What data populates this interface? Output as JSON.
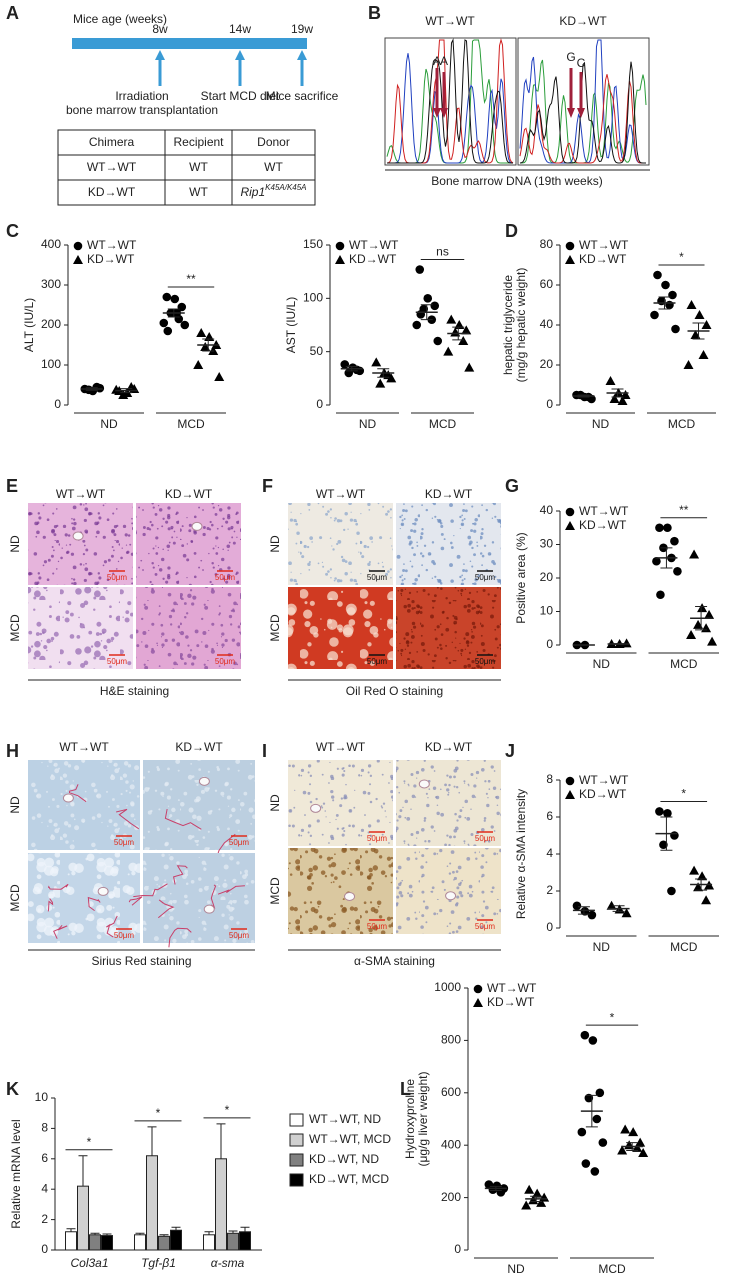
{
  "panel_labels": [
    "A",
    "B",
    "C",
    "D",
    "E",
    "F",
    "G",
    "H",
    "I",
    "J",
    "K",
    "L"
  ],
  "timeline": {
    "title": "Mice age (weeks)",
    "ticks": [
      "8w",
      "14w",
      "19w"
    ],
    "events": [
      [
        "Irradiation",
        "bone marrow transplantation"
      ],
      [
        "Start MCD diet"
      ],
      [
        "Mice sacrifice"
      ]
    ]
  },
  "table": {
    "header": [
      "Chimera",
      "Recipient",
      "Donor"
    ],
    "rows": [
      [
        "WT→WT",
        "WT",
        "WT"
      ],
      [
        "KD→WT",
        "WT",
        {
          "base": "Rip1",
          "sup": "K45A/K45A"
        }
      ]
    ]
  },
  "sequencing": {
    "columns": [
      "WT→WT",
      "KD→WT"
    ],
    "bases": [
      [
        "A",
        "A"
      ],
      [
        "G",
        "C"
      ]
    ],
    "caption": "Bone marrow DNA (19th weeks)"
  },
  "micrographs": [
    {
      "columns": [
        "WT→WT",
        "KD→WT"
      ],
      "rows": [
        "ND",
        "MCD"
      ],
      "scale_bar": "50μm",
      "caption": "H&E staining"
    },
    {
      "columns": [
        "WT→WT",
        "KD→WT"
      ],
      "rows": [
        "ND",
        "MCD"
      ],
      "scale_bar": "50μm",
      "caption": "Oil Red O staining"
    },
    {
      "columns": [
        "WT→WT",
        "KD→WT"
      ],
      "rows": [
        "ND",
        "MCD"
      ],
      "scale_bar": "50μm",
      "caption": "Sirius Red staining"
    },
    {
      "columns": [
        "WT→WT",
        "KD→WT"
      ],
      "rows": [
        "ND",
        "MCD"
      ],
      "scale_bar": "50μm",
      "caption": "α-SMA staining"
    }
  ],
  "chart_data": [
    {
      "type": "dotplot",
      "ylabel": [
        "ALT (IU/L)"
      ],
      "categories": [
        "ND",
        "MCD"
      ],
      "ylim": [
        0,
        400
      ],
      "yticks": [
        0,
        100,
        200,
        300,
        400
      ],
      "legend": "top-left",
      "series": [
        {
          "name": "WT→WT",
          "marker": "circle",
          "color": "#000000",
          "values": [
            [
              40,
              35,
              42,
              38,
              45
            ],
            [
              270,
              265,
              245,
              230,
              215,
              205,
              200,
              185,
              230
            ]
          ],
          "means": [
            40,
            230
          ],
          "errors": [
            3,
            10
          ]
        },
        {
          "name": "KD→WT",
          "marker": "triangle",
          "color": "#000000",
          "values": [
            [
              35,
              30,
              40,
              25,
              45,
              38
            ],
            [
              180,
              170,
              150,
              145,
              135,
              100,
              70
            ]
          ],
          "means": [
            36,
            150
          ],
          "errors": [
            5,
            15
          ]
        }
      ],
      "significance": [
        {
          "category": 1,
          "label": "**"
        }
      ]
    },
    {
      "type": "dotplot",
      "ylabel": [
        "AST (IU/L)"
      ],
      "categories": [
        "ND",
        "MCD"
      ],
      "ylim": [
        0,
        150
      ],
      "yticks": [
        0,
        50,
        100,
        150
      ],
      "legend": "top-left",
      "series": [
        {
          "name": "WT→WT",
          "marker": "circle",
          "color": "#000000",
          "values": [
            [
              38,
              35,
              32,
              30,
              33
            ],
            [
              127,
              100,
              93,
              90,
              80,
              75,
              60,
              85
            ]
          ],
          "means": [
            34,
            87
          ],
          "errors": [
            2,
            7
          ]
        },
        {
          "name": "KD→WT",
          "marker": "triangle",
          "color": "#000000",
          "values": [
            [
              40,
              30,
              25,
              20,
              28
            ],
            [
              80,
              75,
              70,
              68,
              60,
              50,
              35
            ]
          ],
          "means": [
            30,
            67
          ],
          "errors": [
            4,
            6
          ]
        }
      ],
      "significance": [
        {
          "category": 1,
          "label": "ns"
        }
      ]
    },
    {
      "type": "dotplot",
      "ylabel": [
        "hepatic triglyceride",
        "(mg/g hepatic weight)"
      ],
      "categories": [
        "ND",
        "MCD"
      ],
      "ylim": [
        0,
        80
      ],
      "yticks": [
        0,
        20,
        40,
        60,
        80
      ],
      "legend": "top-left",
      "series": [
        {
          "name": "WT→WT",
          "marker": "circle",
          "color": "#000000",
          "values": [
            [
              5,
              4,
              3,
              5,
              4
            ],
            [
              65,
              60,
              55,
              52,
              50,
              45,
              38
            ]
          ],
          "means": [
            4.5,
            51
          ],
          "errors": [
            0.5,
            3
          ]
        },
        {
          "name": "KD→WT",
          "marker": "triangle",
          "color": "#000000",
          "values": [
            [
              12,
              6,
              5,
              3,
              2
            ],
            [
              50,
              45,
              40,
              35,
              25,
              20
            ]
          ],
          "means": [
            6,
            37
          ],
          "errors": [
            2,
            4
          ]
        }
      ],
      "significance": [
        {
          "category": 1,
          "label": "*"
        }
      ]
    },
    {
      "type": "dotplot",
      "ylabel": [
        "Positive area (%)"
      ],
      "categories": [
        "ND",
        "MCD"
      ],
      "ylim": [
        0,
        40
      ],
      "yticks": [
        0,
        10,
        20,
        30,
        40
      ],
      "legend": "top-left",
      "series": [
        {
          "name": "WT→WT",
          "marker": "circle",
          "color": "#000000",
          "values": [
            [
              0,
              0
            ],
            [
              35,
              35,
              31,
              29,
              26,
              25,
              22,
              15
            ]
          ],
          "means": [
            0,
            26
          ],
          "errors": [
            0,
            3
          ]
        },
        {
          "name": "KD→WT",
          "marker": "triangle",
          "color": "#000000",
          "values": [
            [
              0.3,
              0.3,
              0.5
            ],
            [
              27,
              11,
              9,
              6,
              5,
              3,
              1
            ]
          ],
          "means": [
            0.3,
            8
          ],
          "errors": [
            0.1,
            3.5
          ]
        }
      ],
      "significance": [
        {
          "category": 1,
          "label": "**"
        }
      ]
    },
    {
      "type": "dotplot",
      "ylabel": [
        "Relative α-SMA intensity"
      ],
      "categories": [
        "ND",
        "MCD"
      ],
      "ylim": [
        0,
        8
      ],
      "yticks": [
        0,
        2,
        4,
        6,
        8
      ],
      "legend": "top-left",
      "series": [
        {
          "name": "WT→WT",
          "marker": "circle",
          "color": "#000000",
          "values": [
            [
              1.2,
              0.9,
              0.7
            ],
            [
              6.3,
              6.2,
              5,
              4.5,
              2
            ]
          ],
          "means": [
            0.95,
            5.1
          ],
          "errors": [
            0.2,
            0.9
          ]
        },
        {
          "name": "KD→WT",
          "marker": "triangle",
          "color": "#000000",
          "values": [
            [
              1.2,
              1,
              0.8
            ],
            [
              3.1,
              2.8,
              2.3,
              2.2,
              1.5
            ]
          ],
          "means": [
            1.05,
            2.35
          ],
          "errors": [
            0.15,
            0.3
          ]
        }
      ],
      "significance": [
        {
          "category": 1,
          "label": "*"
        }
      ]
    },
    {
      "type": "bar",
      "ylabel": [
        "Relative mRNA level"
      ],
      "categories": [
        "Col3a1",
        "Tgf-β1",
        "α-sma"
      ],
      "ylim": [
        0,
        10
      ],
      "yticks": [
        0,
        2,
        4,
        6,
        8,
        10
      ],
      "legend": "right",
      "series": [
        {
          "name": "WT→WT, ND",
          "color": "#ffffff",
          "values": [
            1.2,
            1.0,
            1.0
          ],
          "errors": [
            0.2,
            0.1,
            0.2
          ]
        },
        {
          "name": "WT→WT, MCD",
          "color": "#d0d0d0",
          "values": [
            4.2,
            6.2,
            6.0
          ],
          "errors": [
            2.0,
            1.9,
            2.3
          ]
        },
        {
          "name": "KD→WT, ND",
          "color": "#808080",
          "values": [
            1.0,
            0.9,
            1.1
          ],
          "errors": [
            0.1,
            0.1,
            0.15
          ]
        },
        {
          "name": "KD→WT, MCD",
          "color": "#000000",
          "values": [
            0.95,
            1.3,
            1.2
          ],
          "errors": [
            0.1,
            0.2,
            0.3
          ]
        }
      ],
      "significance": [
        {
          "category": 0,
          "label": "*"
        },
        {
          "category": 1,
          "label": "*"
        },
        {
          "category": 2,
          "label": "*"
        }
      ]
    },
    {
      "type": "dotplot",
      "ylabel": [
        "Hydroxyproline",
        "(μg/g liver weight)"
      ],
      "categories": [
        "ND",
        "MCD"
      ],
      "ylim": [
        0,
        1000
      ],
      "yticks": [
        0,
        200,
        400,
        600,
        800,
        1000
      ],
      "legend": "top-left",
      "series": [
        {
          "name": "WT→WT",
          "marker": "circle",
          "color": "#000000",
          "values": [
            [
              250,
              245,
              235,
              230,
              220
            ],
            [
              820,
              800,
              600,
              580,
              500,
              450,
              410,
              330,
              300
            ]
          ],
          "means": [
            235,
            530
          ],
          "errors": [
            8,
            60
          ]
        },
        {
          "name": "KD→WT",
          "marker": "triangle",
          "color": "#000000",
          "values": [
            [
              230,
              215,
              200,
              190,
              180,
              170
            ],
            [
              460,
              450,
              410,
              400,
              390,
              380,
              370
            ]
          ],
          "means": [
            195,
            395
          ],
          "errors": [
            10,
            15
          ]
        }
      ],
      "significance": [
        {
          "category": 1,
          "label": "*"
        }
      ]
    }
  ]
}
